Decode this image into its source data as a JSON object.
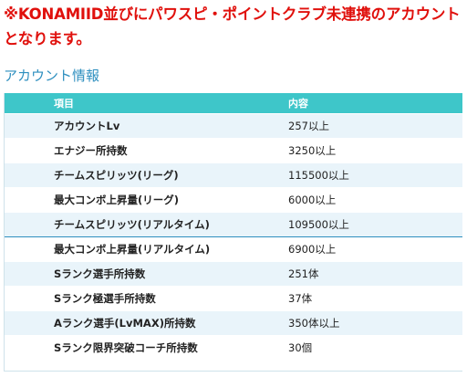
{
  "notice": "※KONAMIID並びにパワスピ・ポイントクラブ未連携のアカウントとなります。",
  "section_title": "アカウント情報",
  "table": {
    "header_item": "項目",
    "header_value": "内容",
    "rows": [
      {
        "item": "アカウントLv",
        "value": "257以上"
      },
      {
        "item": "エナジー所持数",
        "value": "3250以上"
      },
      {
        "item": "チームスピリッツ(リーグ)",
        "value": "115500以上"
      },
      {
        "item": "最大コンボ上昇量(リーグ)",
        "value": "6000以上"
      },
      {
        "item": "チームスピリッツ(リアルタイム)",
        "value": "109500以上"
      },
      {
        "item": "最大コンボ上昇量(リアルタイム)",
        "value": "6900以上"
      },
      {
        "item": "Sランク選手所持数",
        "value": "251体"
      },
      {
        "item": "Sランク極選手所持数",
        "value": "37体"
      },
      {
        "item": "Aランク選手(LvMAX)所持数",
        "value": "350体以上"
      },
      {
        "item": "Sランク限界突破コーチ所持数",
        "value": "30個"
      }
    ]
  },
  "colors": {
    "notice": "#e0100c",
    "section_title": "#2e8fbf",
    "header_bg": "#3ec6c9",
    "row_alt_bg": "#e9f4fa"
  }
}
